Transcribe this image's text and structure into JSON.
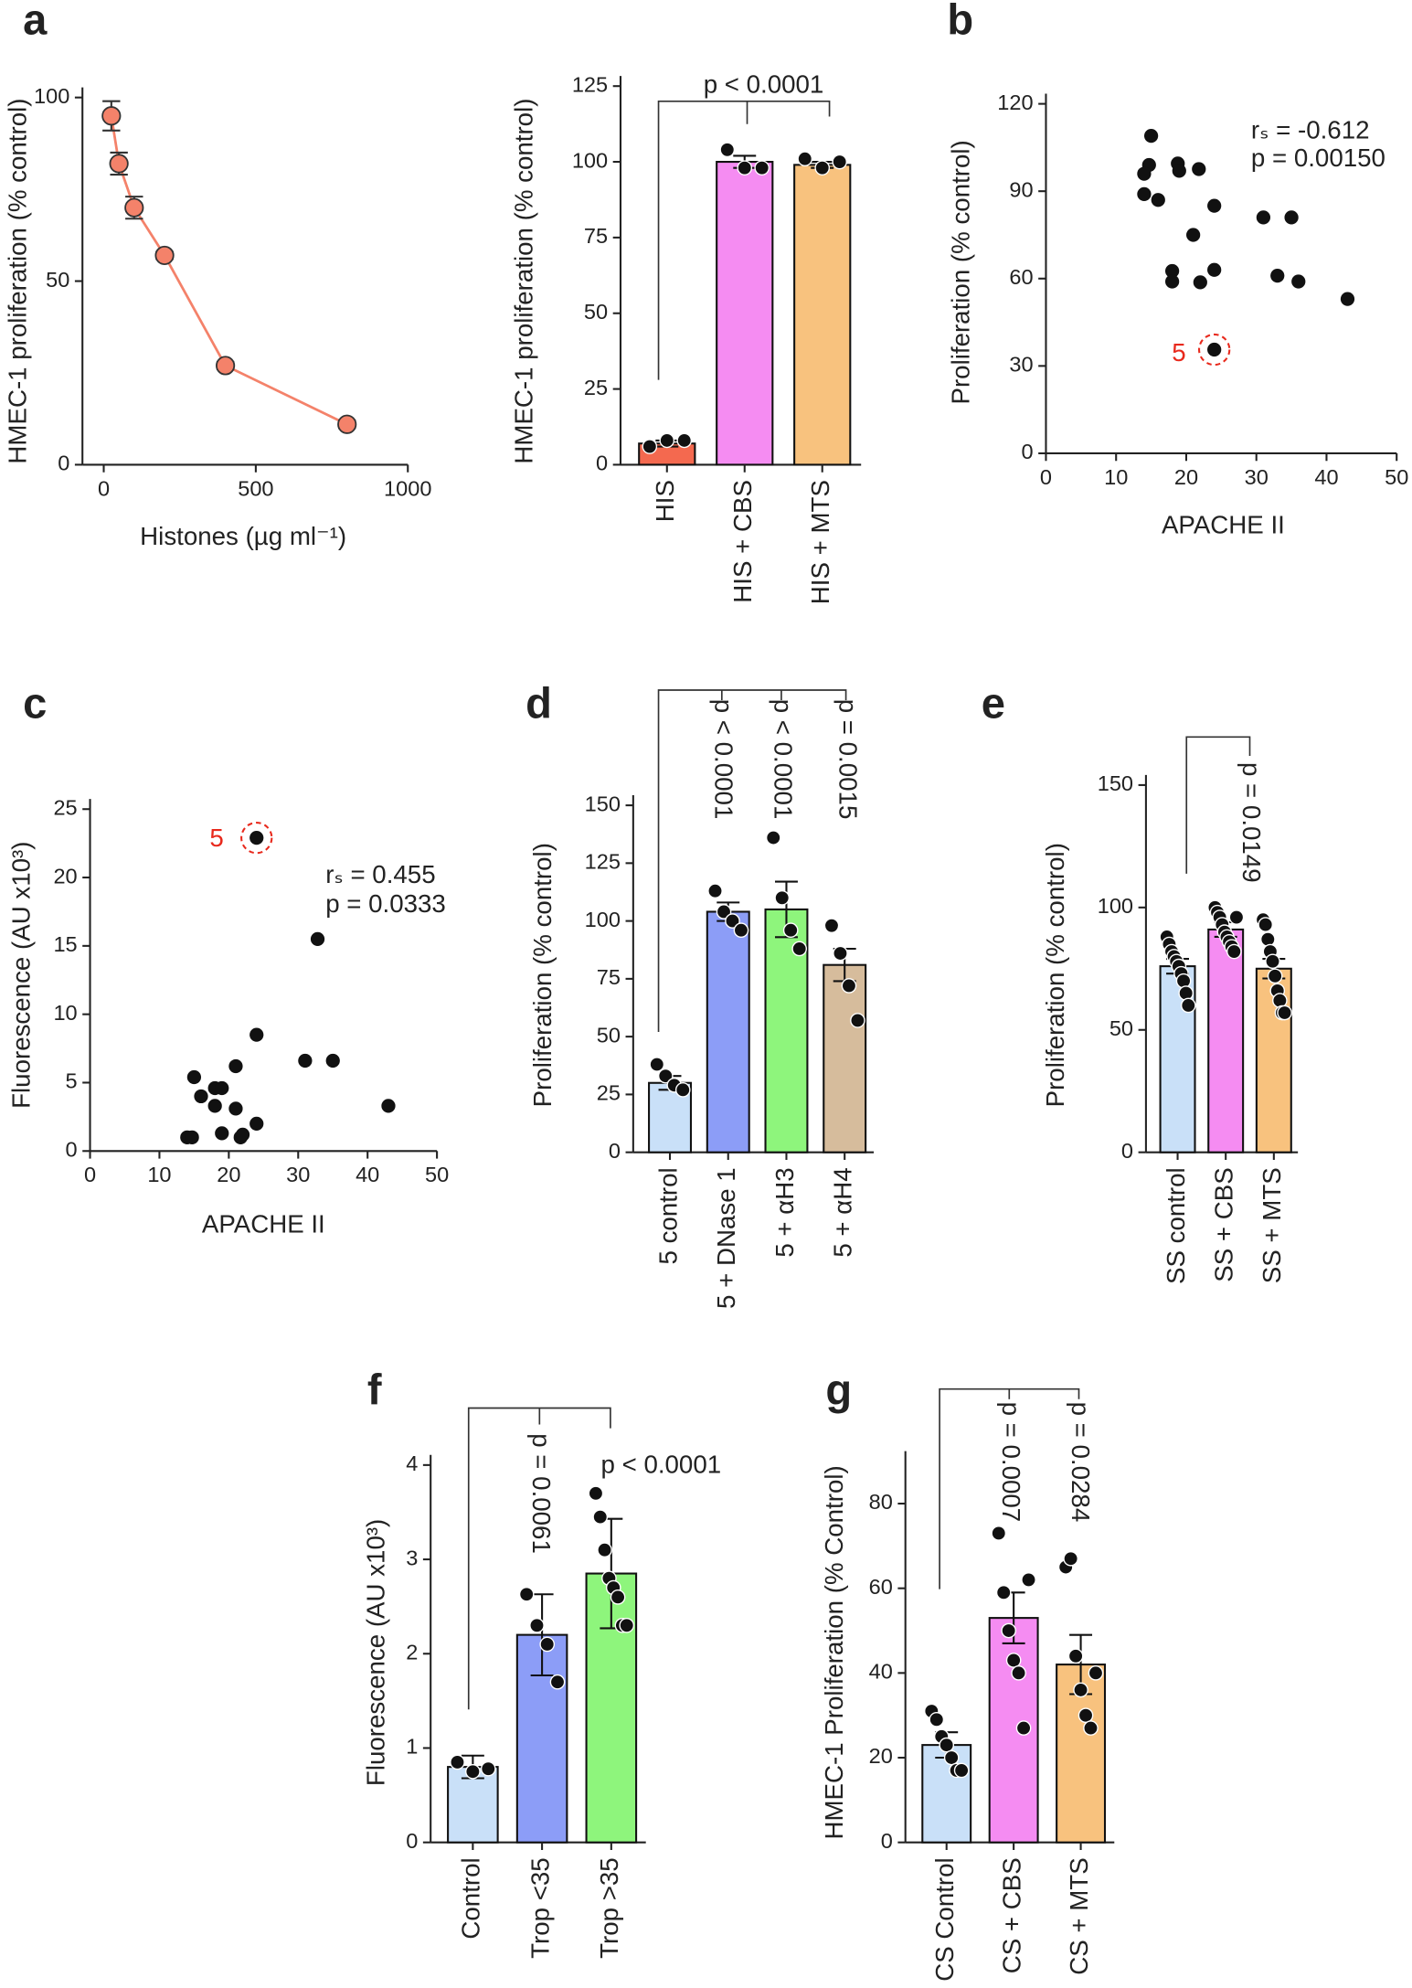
{
  "chart_data": [
    {
      "type": "line",
      "panel": "a",
      "ylabel": "HMEC-1 proliferation (% control)",
      "xlabel": "Histones (µg ml⁻¹)",
      "x": [
        25,
        50,
        100,
        200,
        400,
        800
      ],
      "values": [
        95,
        82,
        70,
        57,
        27,
        11
      ],
      "errors": [
        4,
        3,
        3,
        1,
        1,
        1
      ],
      "color": "#f4826a",
      "xlim": [
        -70,
        1000
      ],
      "xticks": [
        0,
        500,
        1000
      ],
      "ylim": [
        0,
        100
      ],
      "yticks": [
        0,
        50,
        100
      ]
    },
    {
      "type": "bar",
      "ylabel": "HMEC-1 proliferation (% control)",
      "categories": [
        "HIS",
        "HIS + CBS",
        "HIS + MTS"
      ],
      "values": [
        7,
        100,
        99
      ],
      "errors": [
        1,
        2,
        1
      ],
      "points": [
        [
          6,
          8,
          8
        ],
        [
          104,
          98,
          98
        ],
        [
          101,
          98,
          100
        ]
      ],
      "colors": [
        "#f4694f",
        "#f58cf2",
        "#f8c27e"
      ],
      "ylim": [
        0,
        125
      ],
      "yticks": [
        0,
        25,
        50,
        75,
        100,
        125
      ],
      "annotations": [
        "p < 0.0001"
      ]
    },
    {
      "type": "scatter",
      "panel": "b",
      "ylabel": "Proliferation (% control)",
      "xlabel": "APACHE II",
      "x": [
        24,
        15,
        14.7,
        14,
        14,
        16,
        18.8,
        19,
        21.8,
        24,
        21,
        18,
        18,
        22,
        24,
        31,
        35,
        33,
        36,
        43
      ],
      "values": [
        35.6,
        109,
        99,
        96,
        89,
        87,
        99.5,
        97,
        97.6,
        85,
        75,
        62.6,
        59,
        58.7,
        63,
        81,
        81,
        61,
        59,
        53
      ],
      "xlim": [
        0,
        50
      ],
      "xticks": [
        0,
        10,
        20,
        30,
        40,
        50
      ],
      "ylim": [
        0,
        120
      ],
      "yticks": [
        0,
        30,
        60,
        90,
        120
      ],
      "annotations": [
        "5",
        "rₛ = -0.612",
        "p = 0.00150"
      ]
    },
    {
      "type": "scatter",
      "panel": "c",
      "ylabel": "Fluorescence (AU x10³)",
      "xlabel": "APACHE II",
      "x": [
        24,
        32.8,
        24,
        31,
        35,
        43,
        21,
        15,
        16,
        18,
        19,
        18,
        21,
        19,
        21.7,
        22,
        24,
        14,
        14.7
      ],
      "values": [
        22.9,
        15.5,
        8.5,
        6.6,
        6.6,
        3.3,
        6.2,
        5.4,
        4,
        4.6,
        4.6,
        3.3,
        3.1,
        1.3,
        1,
        1.2,
        2,
        1,
        1
      ],
      "xlim": [
        0,
        50
      ],
      "xticks": [
        0,
        10,
        20,
        30,
        40,
        50
      ],
      "ylim": [
        0,
        25
      ],
      "yticks": [
        0,
        5,
        10,
        15,
        20,
        25
      ],
      "annotations": [
        "5",
        "rₛ = 0.455",
        "p = 0.0333"
      ]
    },
    {
      "type": "bar",
      "panel": "d",
      "ylabel": "Proliferation (% control)",
      "categories": [
        "5 control",
        "5 + DNase 1",
        "5 + αH3",
        "5 + αH4"
      ],
      "values": [
        30,
        104,
        105,
        81
      ],
      "errors": [
        3,
        4,
        12,
        7
      ],
      "points": [
        [
          38,
          33,
          29,
          27
        ],
        [
          113,
          104,
          100,
          96
        ],
        [
          136,
          110,
          96,
          88
        ],
        [
          98,
          86,
          72,
          57
        ]
      ],
      "colors": [
        "#c9e0f8",
        "#8c9df7",
        "#8ef57c",
        "#d6bc9c"
      ],
      "ylim": [
        0,
        150
      ],
      "yticks": [
        0,
        25,
        50,
        75,
        100,
        125,
        150
      ],
      "annotations": [
        "p < 0.0001",
        "p < 0.0001",
        "p = 0.0015"
      ]
    },
    {
      "type": "bar",
      "panel": "e",
      "ylabel": "Proliferation (% control)",
      "categories": [
        "SS control",
        "SS + CBS",
        "SS + MTS"
      ],
      "values": [
        76,
        91,
        75
      ],
      "errors": [
        3,
        3,
        4
      ],
      "points": [
        [
          88,
          85,
          82,
          80,
          78,
          76,
          73,
          70,
          65,
          60
        ],
        [
          100,
          98,
          96,
          93,
          90,
          88,
          86,
          84,
          82,
          96
        ],
        [
          95,
          93,
          87,
          82,
          78,
          72,
          66,
          62,
          57,
          57
        ]
      ],
      "colors": [
        "#c9e0f8",
        "#f58cf2",
        "#f8c27e"
      ],
      "ylim": [
        0,
        150
      ],
      "yticks": [
        0,
        50,
        100,
        150
      ],
      "annotations": [
        "p = 0.0149"
      ]
    },
    {
      "type": "bar",
      "panel": "f",
      "ylabel": "Fluorescence (AU x10³)",
      "categories": [
        "Control",
        "Trop <35",
        "Trop >35"
      ],
      "values": [
        0.8,
        2.2,
        2.85
      ],
      "errors": [
        0.12,
        0.43,
        0.58
      ],
      "points": [
        [
          0.85,
          0.75,
          0.78
        ],
        [
          2.63,
          2.3,
          2.1,
          1.7
        ],
        [
          3.7,
          3.45,
          3.1,
          2.8,
          2.7,
          2.6,
          2.3,
          2.3
        ]
      ],
      "colors": [
        "#c9e0f8",
        "#8c9df7",
        "#8ef57c"
      ],
      "ylim": [
        0,
        4
      ],
      "yticks": [
        0,
        1,
        2,
        3,
        4
      ],
      "annotations": [
        "p = 0.0061",
        "p < 0.0001"
      ]
    },
    {
      "type": "bar",
      "panel": "g",
      "ylabel": "HMEC-1 Proliferation (% Control)",
      "categories": [
        "CS Control",
        "CS + CBS",
        "CS + MTS"
      ],
      "values": [
        23,
        53,
        42
      ],
      "errors": [
        3,
        6,
        7
      ],
      "points": [
        [
          31,
          29,
          25,
          23,
          20,
          17,
          17
        ],
        [
          73,
          59,
          50,
          43,
          40,
          27,
          62
        ],
        [
          65,
          67,
          44,
          36,
          30,
          27,
          40
        ]
      ],
      "colors": [
        "#c9e0f8",
        "#f58cf2",
        "#f8c27e"
      ],
      "ylim": [
        0,
        90
      ],
      "yticks": [
        0,
        20,
        40,
        60,
        80
      ],
      "annotations": [
        "p = 0.0007",
        "p = 0.0284"
      ]
    }
  ]
}
